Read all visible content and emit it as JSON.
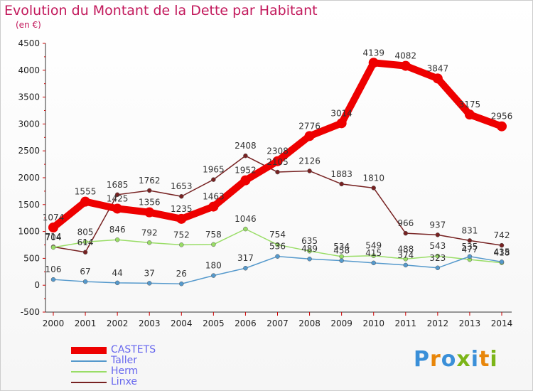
{
  "title": "Evolution du Montant de la Dette par Habitant",
  "unit": "(en €)",
  "logo": {
    "letters": [
      "P",
      "r",
      "o",
      "x",
      "i",
      "t",
      "i"
    ],
    "colors": [
      "#3a8fd8",
      "#e8860a",
      "#3a8fd8",
      "#7cb518",
      "#3a8fd8",
      "#e8860a",
      "#7cb518"
    ]
  },
  "chart_data": {
    "type": "line",
    "title": "Evolution du Montant de la Dette par Habitant",
    "ylabel": "(en €)",
    "xlabel": "",
    "ylim": [
      -500,
      4500
    ],
    "yticks": [
      -500,
      0,
      500,
      1000,
      1500,
      2000,
      2500,
      3000,
      3500,
      4000,
      4500
    ],
    "categories": [
      "2000",
      "2001",
      "2002",
      "2003",
      "2004",
      "2005",
      "2006",
      "2007",
      "2008",
      "2009",
      "2010",
      "2011",
      "2012",
      "2013",
      "2014"
    ],
    "grid": false,
    "legend_position": "bottom-left",
    "series": [
      {
        "name": "CASTETS",
        "color": "#ee0000",
        "width": 10,
        "values": [
          1074,
          1555,
          1425,
          1356,
          1235,
          1463,
          1952,
          2308,
          2776,
          3014,
          4139,
          4082,
          3847,
          3175,
          2956
        ],
        "labels": [
          "1074",
          "1555",
          "1425",
          "1356",
          "1235",
          "1463",
          "1952",
          "2308",
          "2776",
          "3014",
          "4139",
          "4082",
          "3847",
          "3175",
          "2956"
        ]
      },
      {
        "name": "Taller",
        "color": "#5599cc",
        "width": 1.5,
        "values": [
          106,
          67,
          44,
          37,
          26,
          180,
          317,
          536,
          489,
          458,
          415,
          374,
          323,
          535,
          435
        ],
        "labels": [
          "106",
          "67",
          "44",
          "37",
          "26",
          "180",
          "317",
          "536",
          "489",
          "458",
          "415",
          "374",
          "323",
          "535",
          "435"
        ]
      },
      {
        "name": "Herm",
        "color": "#99dd66",
        "width": 1.5,
        "values": [
          704,
          805,
          846,
          792,
          752,
          758,
          1046,
          754,
          635,
          534,
          549,
          488,
          543,
          477,
          418
        ],
        "labels": [
          "704",
          "805",
          "846",
          "792",
          "752",
          "758",
          "1046",
          "754",
          "635",
          "534",
          "549",
          "488",
          "543",
          "477",
          "418"
        ]
      },
      {
        "name": "Linxe",
        "color": "#772222",
        "width": 1.5,
        "values": [
          714,
          614,
          1685,
          1762,
          1653,
          1965,
          2408,
          2105,
          2126,
          1883,
          1810,
          966,
          937,
          831,
          742
        ],
        "labels": [
          "714",
          "614",
          "1685",
          "1762",
          "1653",
          "1965",
          "2408",
          "2105",
          "2126",
          "1883",
          "1810",
          "966",
          "937",
          "831",
          "742"
        ]
      }
    ]
  }
}
